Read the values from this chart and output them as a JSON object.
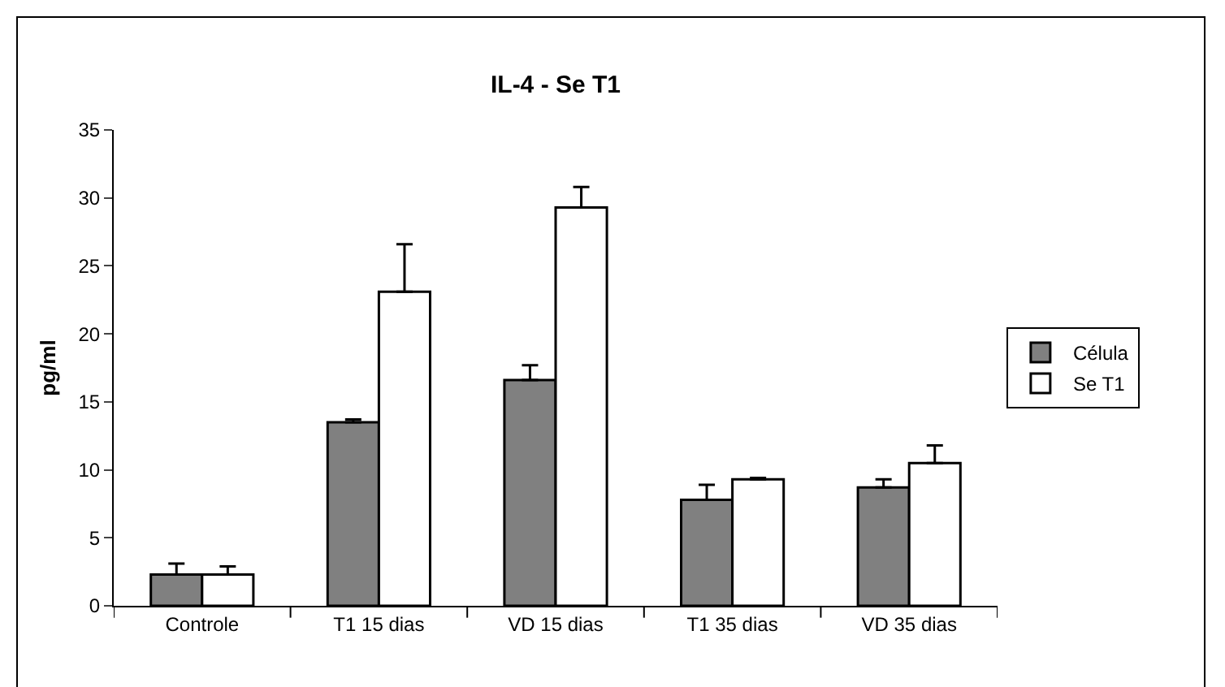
{
  "chart_data": {
    "type": "bar",
    "title": "IL-4 - Se T1",
    "ylabel": "pg/ml",
    "categories": [
      "Controle",
      "T1 15 dias",
      "VD 15 dias",
      "T1 35 dias",
      "VD 35 dias"
    ],
    "series": [
      {
        "name": "Célula",
        "color": "#808080",
        "values": [
          2.3,
          13.5,
          16.6,
          7.8,
          8.7
        ],
        "errors": [
          [
            2.3,
            3.1
          ],
          [
            13.5,
            13.7
          ],
          [
            16.6,
            17.7
          ],
          [
            7.8,
            8.9
          ],
          [
            8.7,
            9.3
          ]
        ]
      },
      {
        "name": "Se T1",
        "color": "#ffffff",
        "values": [
          2.3,
          23.1,
          29.3,
          9.3,
          10.5
        ],
        "errors": [
          [
            2.3,
            2.9
          ],
          [
            23.1,
            26.6
          ],
          [
            29.3,
            30.8
          ],
          [
            9.3,
            9.4
          ],
          [
            10.5,
            11.8
          ]
        ]
      }
    ],
    "ylim": [
      0,
      35
    ],
    "yticks": [
      0,
      5,
      10,
      15,
      20,
      25,
      30,
      35
    ],
    "grid": false,
    "legend": "right"
  }
}
